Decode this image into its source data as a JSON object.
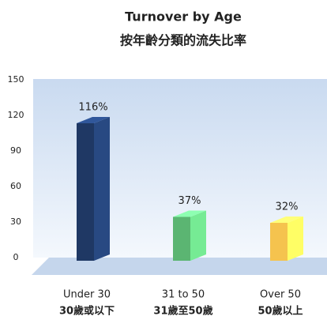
{
  "chart_data": {
    "type": "bar3d",
    "title": "Turnover by Age",
    "subtitle": "按年齡分類的流失比率",
    "categories": [
      "Under 30",
      "31 to 50",
      "Over 50"
    ],
    "categories_zh": [
      "30歲或以下",
      "31歲至50歲",
      "50歲以上"
    ],
    "values": [
      116,
      37,
      32
    ],
    "value_labels": [
      "116%",
      "37%",
      "32%"
    ],
    "colors": [
      "#1f3864",
      "#5bb572",
      "#f5c34e"
    ],
    "ylim": [
      0,
      150
    ],
    "yticks": [
      0,
      30,
      60,
      90,
      120,
      150
    ],
    "grid": false
  }
}
